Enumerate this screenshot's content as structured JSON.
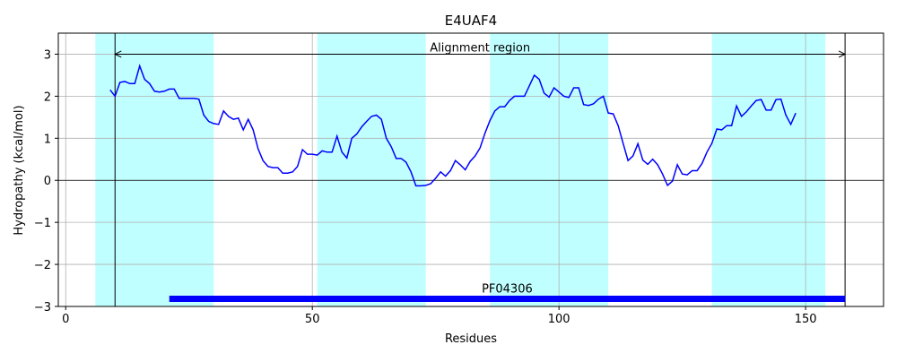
{
  "chart_data": {
    "type": "line",
    "title": "E4UAF4",
    "xlabel": "Residues",
    "ylabel": "Hydropathy (kcal/mol)",
    "xlim": [
      -1.5,
      165.8
    ],
    "ylim": [
      -3,
      3.5
    ],
    "xticks": [
      0,
      50,
      100,
      150
    ],
    "yticks": [
      {
        "value": -3,
        "label": "−3"
      },
      {
        "value": -2,
        "label": "−2"
      },
      {
        "value": -1,
        "label": "−1"
      },
      0,
      1,
      2,
      3
    ],
    "grid": true,
    "hline": 0,
    "color": "#0000ff",
    "regions": [
      [
        6,
        30
      ],
      [
        51,
        73
      ],
      [
        86,
        110
      ],
      [
        131,
        154
      ]
    ],
    "region_color": "#c0ffff",
    "alignment": {
      "label": "Alignment region",
      "start": 10,
      "end": 158,
      "y": 3
    },
    "domain": {
      "label": "PF04306",
      "start": 21,
      "end": 158,
      "y": -2.82,
      "color": "#0000ff"
    },
    "x": [
      9,
      10,
      11,
      12,
      13,
      14,
      15,
      16,
      17,
      18,
      19,
      20,
      21,
      22,
      23,
      24,
      25,
      26,
      27,
      28,
      29,
      30,
      31,
      32,
      33,
      34,
      35,
      36,
      37,
      38,
      39,
      40,
      41,
      42,
      43,
      44,
      45,
      46,
      47,
      48,
      49,
      50,
      51,
      52,
      53,
      54,
      55,
      56,
      57,
      58,
      59,
      60,
      61,
      62,
      63,
      64,
      65,
      66,
      67,
      68,
      69,
      70,
      71,
      72,
      73,
      74,
      75,
      76,
      77,
      78,
      79,
      80,
      81,
      82,
      83,
      84,
      85,
      86,
      87,
      88,
      89,
      90,
      91,
      92,
      93,
      94,
      95,
      96,
      97,
      98,
      99,
      100,
      101,
      102,
      103,
      104,
      105,
      106,
      107,
      108,
      109,
      110,
      111,
      112,
      113,
      114,
      115,
      116,
      117,
      118,
      119,
      120,
      121,
      122,
      123,
      124,
      125,
      126,
      127,
      128,
      129,
      130,
      131,
      132,
      133,
      134,
      135,
      136,
      137,
      138,
      139,
      140,
      141,
      142,
      143,
      144,
      145,
      146,
      147,
      148
    ],
    "values": [
      2.15,
      2.0,
      2.33,
      2.35,
      2.3,
      2.3,
      2.72,
      2.4,
      2.3,
      2.12,
      2.1,
      2.12,
      2.17,
      2.17,
      1.95,
      1.95,
      1.95,
      1.95,
      1.93,
      1.55,
      1.4,
      1.35,
      1.33,
      1.65,
      1.52,
      1.45,
      1.48,
      1.2,
      1.45,
      1.2,
      0.75,
      0.47,
      0.33,
      0.3,
      0.3,
      0.17,
      0.17,
      0.2,
      0.33,
      0.73,
      0.62,
      0.62,
      0.6,
      0.7,
      0.67,
      0.67,
      1.05,
      0.67,
      0.53,
      1.0,
      1.1,
      1.27,
      1.4,
      1.52,
      1.55,
      1.45,
      1.0,
      0.8,
      0.52,
      0.52,
      0.43,
      0.2,
      -0.13,
      -0.13,
      -0.12,
      -0.08,
      0.05,
      0.2,
      0.1,
      0.23,
      0.47,
      0.37,
      0.25,
      0.45,
      0.58,
      0.77,
      1.12,
      1.42,
      1.65,
      1.75,
      1.75,
      1.9,
      2.0,
      2.0,
      2.0,
      2.25,
      2.5,
      2.4,
      2.07,
      1.98,
      2.2,
      2.1,
      2.0,
      1.97,
      2.2,
      2.2,
      1.8,
      1.78,
      1.82,
      1.93,
      2.0,
      1.6,
      1.58,
      1.3,
      0.88,
      0.47,
      0.58,
      0.87,
      0.48,
      0.38,
      0.5,
      0.37,
      0.15,
      -0.12,
      -0.02,
      0.37,
      0.15,
      0.13,
      0.23,
      0.23,
      0.4,
      0.67,
      0.88,
      1.22,
      1.2,
      1.3,
      1.3,
      1.77,
      1.52,
      1.63,
      1.77,
      1.9,
      1.92,
      1.67,
      1.67,
      1.92,
      1.93,
      1.55,
      1.33,
      1.6
    ]
  }
}
